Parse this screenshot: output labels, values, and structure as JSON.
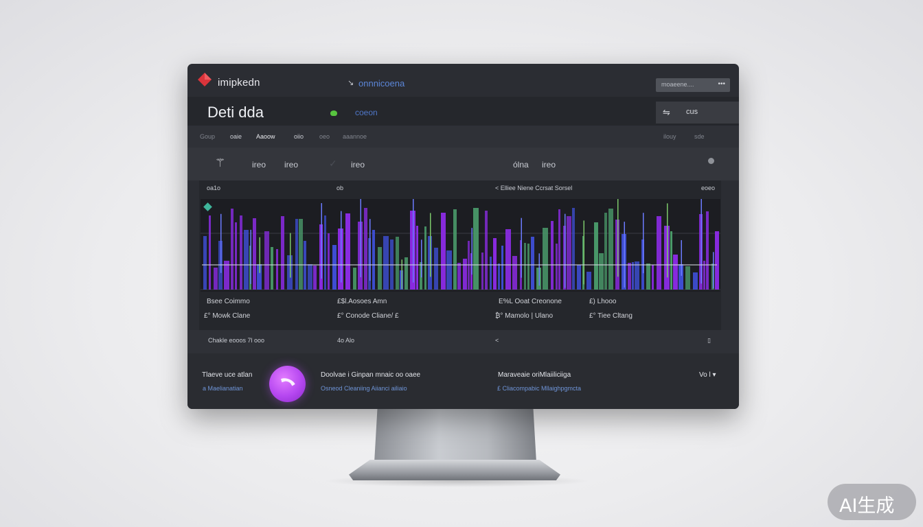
{
  "header": {
    "brand": "imipkedn",
    "nav_arrow": "↘",
    "nav_link": "onnnicoena",
    "search_placeholder": "moaeene....",
    "search_icon": "•••"
  },
  "title_row": {
    "title": "Deti dda",
    "status_label": "coeon",
    "status_color": "#57c43f",
    "filter_icon": "⇋",
    "filter_label": "cus"
  },
  "tabs": [
    "Goup",
    "oaie",
    "Aaoow",
    "oiio",
    "oeo",
    "aaannoe"
  ],
  "tabs_right": [
    "ilouy",
    "sde"
  ],
  "toolbar": {
    "tool_icon": "⚚",
    "tools": [
      "ireo",
      "ireo",
      "ireo"
    ],
    "check_icon": "✓",
    "right": [
      "ólna",
      "ireo"
    ]
  },
  "chart_header": {
    "left": "oa1o",
    "mid": "ob",
    "center": "< Elliee Niene Ccrsat Sorsel",
    "right": "eoeo"
  },
  "chart_data": {
    "type": "bar",
    "series": [
      {
        "color": "#3f4fd8"
      },
      {
        "color": "#8a2be2"
      },
      {
        "color": "#4a9a6a"
      }
    ]
  },
  "stats": {
    "row1": [
      "Bsee Coimmo",
      "£$l.Aosoes Amn",
      "E%L Ooat Creonone",
      "£) Lhooo"
    ],
    "row2": [
      "£° Mowk Clane",
      "£° Conode Cliane/ £",
      "₿° Mamolo | Ulano",
      "£° Tiee Cltang"
    ]
  },
  "footer": {
    "left": "Chakle eooos 7l ooo",
    "mid": "4o Alo",
    "center": "<",
    "right": "▯"
  },
  "bottom": {
    "col1_title": "Tlaeve uce atlan",
    "col1_sub": "a Maelianatian",
    "col2_title": "Doolvae i Ginpan mnaic oo oaee",
    "col2_sub": "Osneod Cleaniing Aiianci ailiaio",
    "col3_title": "Maraveaie oriMlaiiliciiga",
    "col3_sub": "£ Cliacompabic Mllaighpgmcta",
    "right": "Vo l ▾",
    "accent_color": "#b547f0"
  },
  "watermark": "AI生成"
}
